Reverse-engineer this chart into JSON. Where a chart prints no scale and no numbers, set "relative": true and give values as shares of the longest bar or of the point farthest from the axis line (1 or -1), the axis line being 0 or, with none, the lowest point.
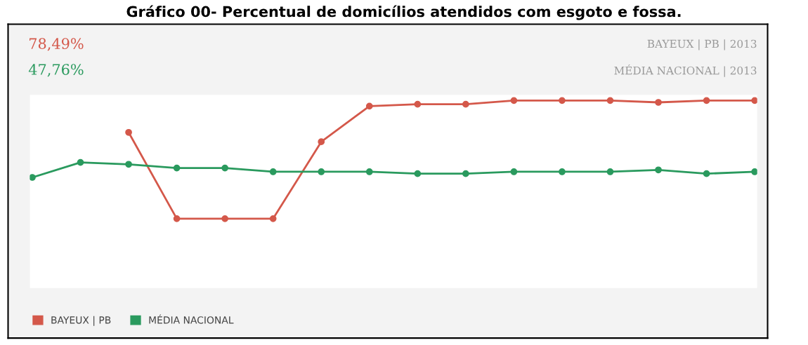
{
  "chart_data": {
    "type": "line",
    "title": "Gráfico 00- Percentual de domicílios atendidos com esgoto e fossa.",
    "relative": true,
    "categories": [
      null,
      null,
      null,
      null,
      null,
      null,
      null,
      null,
      null,
      null,
      null,
      null,
      null,
      null,
      null,
      null
    ],
    "series": [
      {
        "name": "BAYEUX | PB",
        "color": "#d4584a",
        "values": [
          null,
          null,
          0.83,
          0.37,
          0.37,
          0.37,
          0.78,
          0.97,
          0.98,
          0.98,
          1,
          1,
          1,
          0.99,
          1,
          1
        ]
      },
      {
        "name": "MÉDIA NACIONAL",
        "color": "#2a9a5e",
        "values": [
          0.59,
          0.67,
          0.66,
          0.64,
          0.64,
          0.62,
          0.62,
          0.62,
          0.61,
          0.61,
          0.62,
          0.62,
          0.62,
          0.63,
          0.61,
          0.62
        ]
      }
    ],
    "annotations": [
      "78,49%",
      "47,76%",
      "BAYEUX | PB | 2013",
      "MÉDIA NACIONAL | 2013"
    ],
    "marker": "circle",
    "line_style": "solid",
    "grid": false,
    "legend": "bottom left"
  }
}
